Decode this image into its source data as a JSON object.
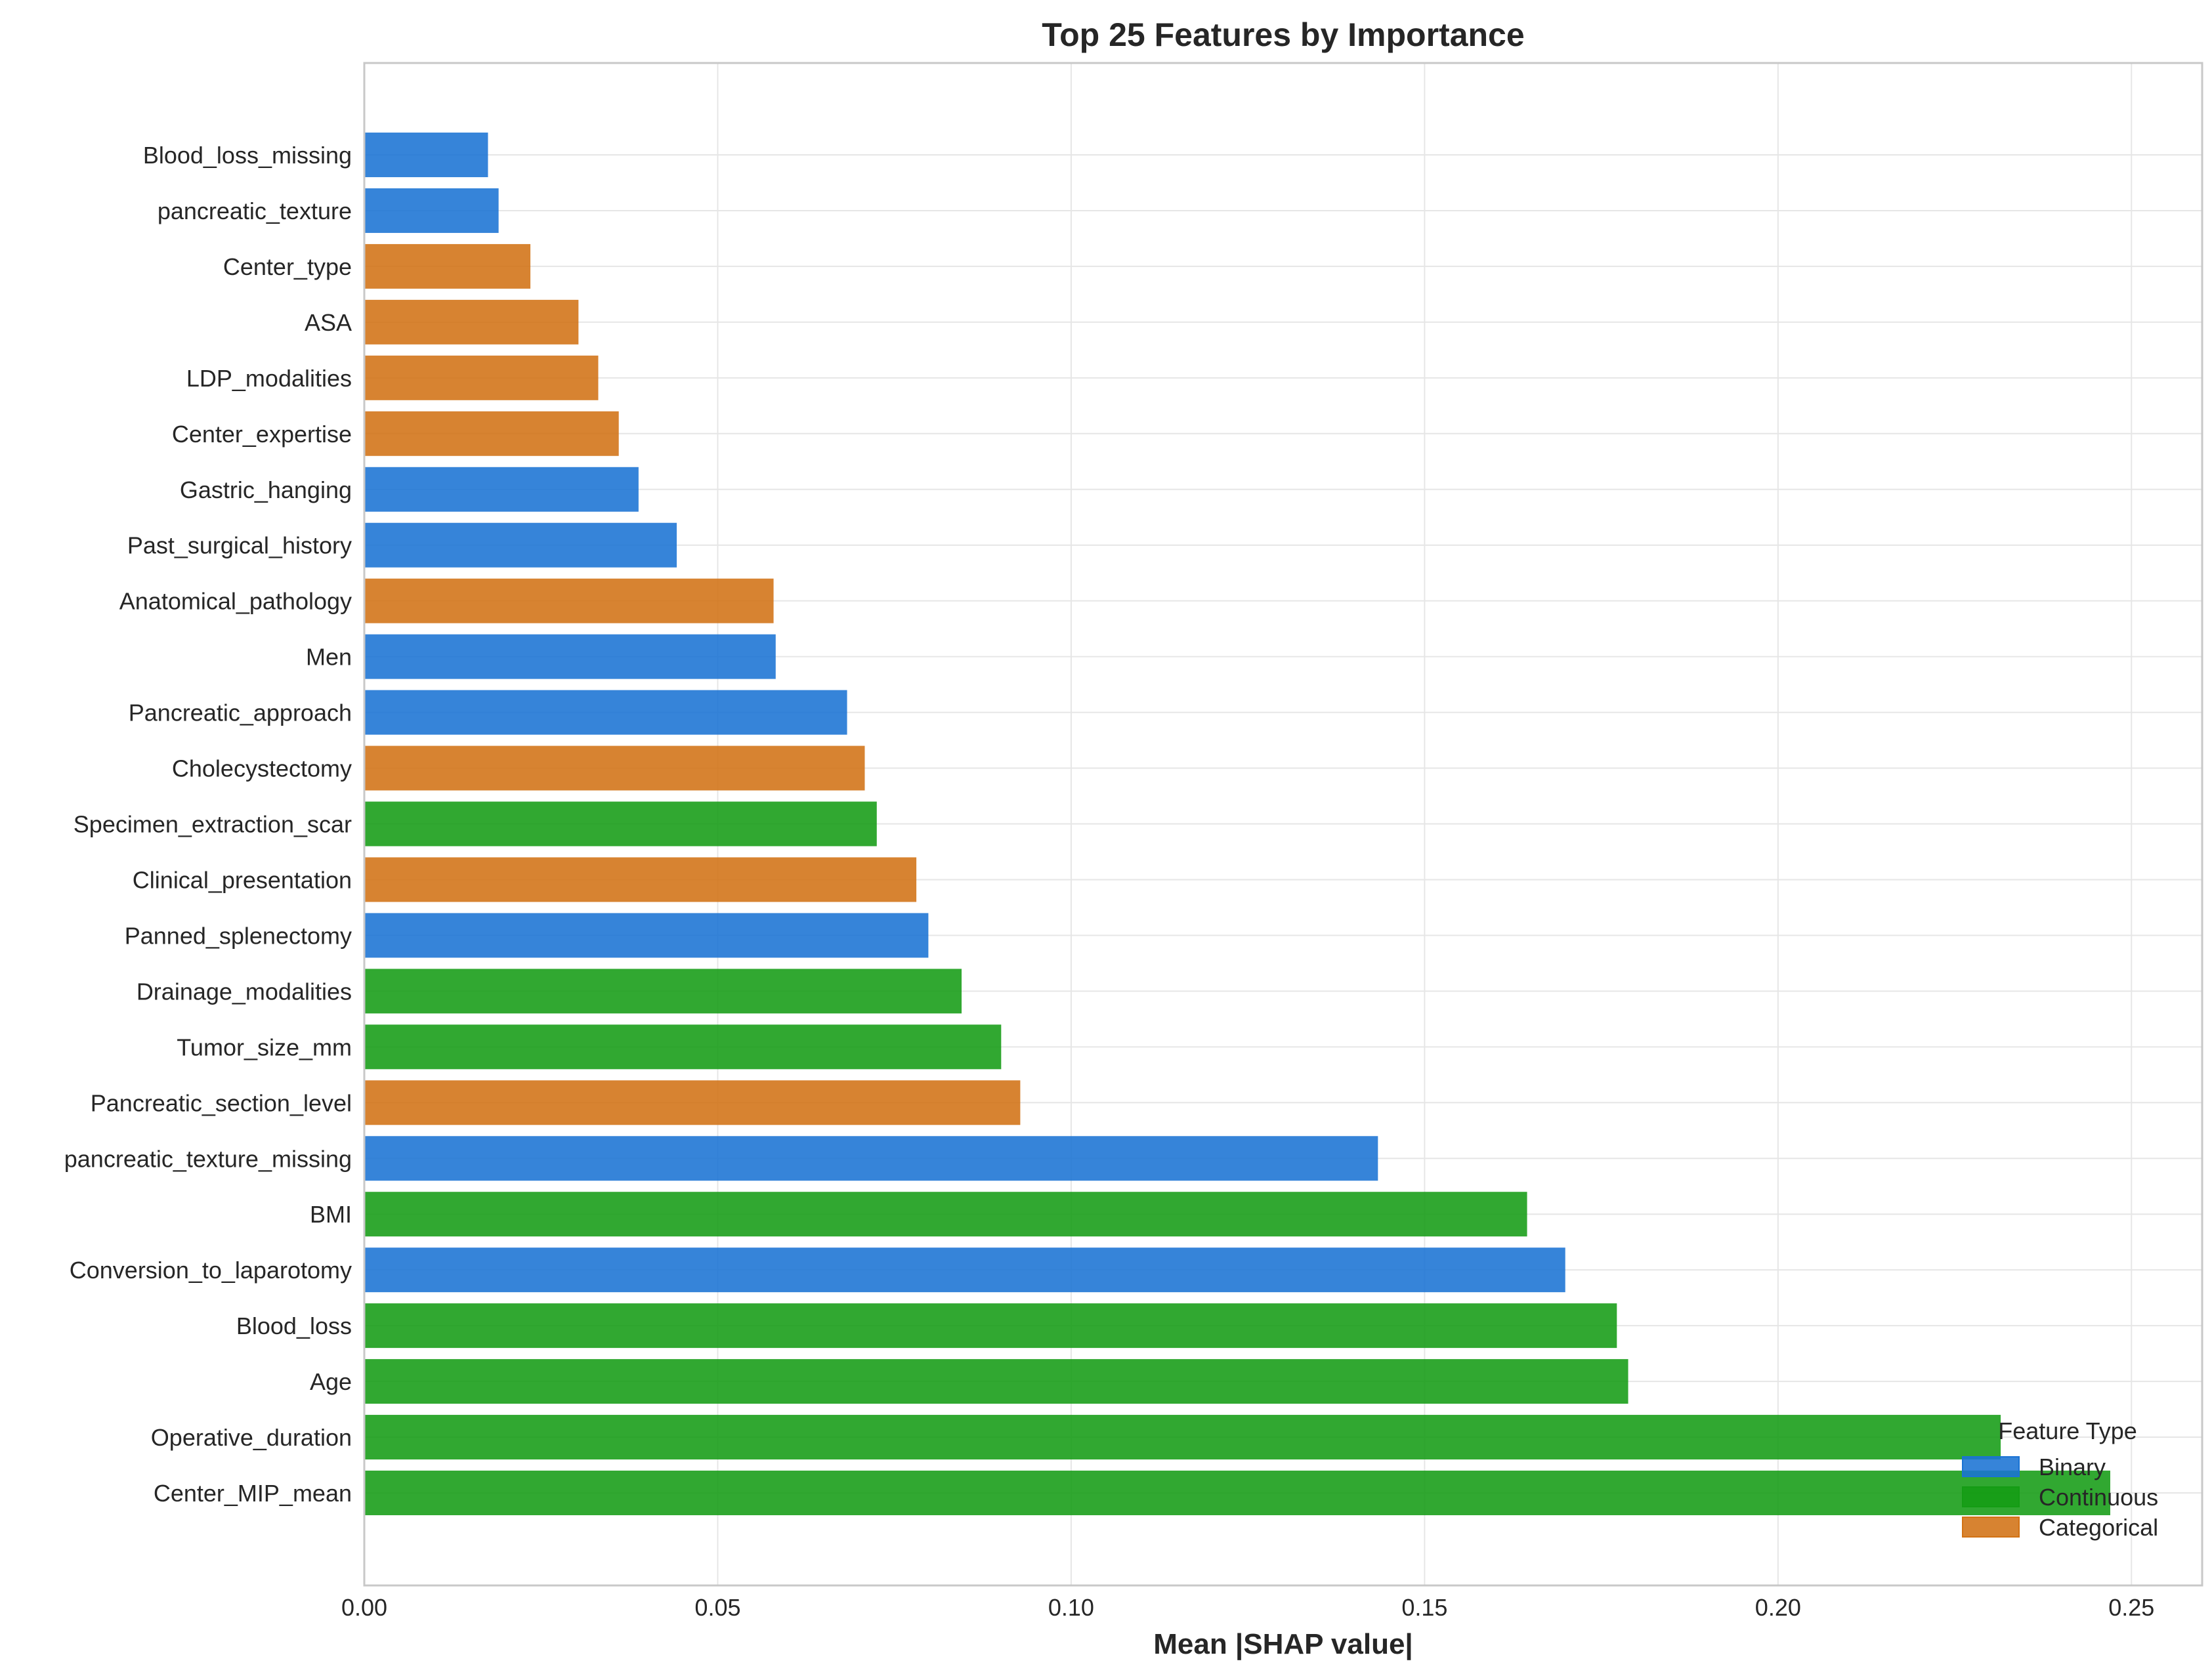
{
  "chart_data": {
    "type": "bar",
    "orientation": "horizontal",
    "title": "Top 25 Features by Importance",
    "xlabel": "Mean |SHAP value|",
    "ylabel": "",
    "xlim": [
      0,
      0.26
    ],
    "xticks": [
      0.0,
      0.05,
      0.1,
      0.15,
      0.2,
      0.25
    ],
    "xtick_labels": [
      "0.00",
      "0.05",
      "0.10",
      "0.15",
      "0.20",
      "0.25"
    ],
    "grid": true,
    "legend": {
      "title": "Feature Type",
      "placement": "lower-right",
      "entries": [
        {
          "name": "Binary",
          "color": "#1a73d4"
        },
        {
          "name": "Continuous",
          "color": "#149c14"
        },
        {
          "name": "Categorical",
          "color": "#d27214"
        }
      ]
    },
    "bars": [
      {
        "label": "Blood_loss_missing",
        "value": 0.0175,
        "type": "Binary"
      },
      {
        "label": "pancreatic_texture",
        "value": 0.019,
        "type": "Binary"
      },
      {
        "label": "Center_type",
        "value": 0.0235,
        "type": "Categorical"
      },
      {
        "label": "ASA",
        "value": 0.0303,
        "type": "Categorical"
      },
      {
        "label": "LDP_modalities",
        "value": 0.0331,
        "type": "Categorical"
      },
      {
        "label": "Center_expertise",
        "value": 0.036,
        "type": "Categorical"
      },
      {
        "label": "Gastric_hanging",
        "value": 0.0388,
        "type": "Binary"
      },
      {
        "label": "Past_surgical_history",
        "value": 0.0442,
        "type": "Binary"
      },
      {
        "label": "Anatomical_pathology",
        "value": 0.0579,
        "type": "Categorical"
      },
      {
        "label": "Men",
        "value": 0.0582,
        "type": "Binary"
      },
      {
        "label": "Pancreatic_approach",
        "value": 0.0683,
        "type": "Binary"
      },
      {
        "label": "Cholecystectomy",
        "value": 0.0708,
        "type": "Categorical"
      },
      {
        "label": "Specimen_extraction_scar",
        "value": 0.0725,
        "type": "Continuous"
      },
      {
        "label": "Clinical_presentation",
        "value": 0.0781,
        "type": "Categorical"
      },
      {
        "label": "Panned_splenectomy",
        "value": 0.0798,
        "type": "Binary"
      },
      {
        "label": "Drainage_modalities",
        "value": 0.0845,
        "type": "Continuous"
      },
      {
        "label": "Tumor_size_mm",
        "value": 0.0901,
        "type": "Continuous"
      },
      {
        "label": "Pancreatic_section_level",
        "value": 0.0928,
        "type": "Categorical"
      },
      {
        "label": "pancreatic_texture_missing",
        "value": 0.1434,
        "type": "Binary"
      },
      {
        "label": "BMI",
        "value": 0.1645,
        "type": "Continuous"
      },
      {
        "label": "Conversion_to_laparotomy",
        "value": 0.1699,
        "type": "Binary"
      },
      {
        "label": "Blood_loss",
        "value": 0.1772,
        "type": "Continuous"
      },
      {
        "label": "Age",
        "value": 0.1788,
        "type": "Continuous"
      },
      {
        "label": "Operative_duration",
        "value": 0.2315,
        "type": "Continuous"
      },
      {
        "label": "Center_MIP_mean",
        "value": 0.247,
        "type": "Continuous"
      }
    ]
  }
}
